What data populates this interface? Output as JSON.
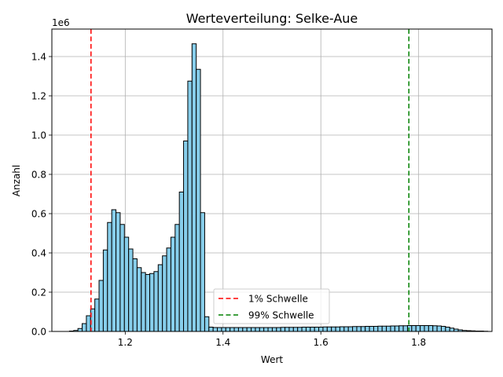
{
  "chart_data": {
    "type": "bar",
    "title": "Werteverteilung: Selke-Aue",
    "xlabel": "Wert",
    "ylabel": "Anzahl",
    "y_multiplier_label": "1e6",
    "xlim": [
      1.05,
      1.95
    ],
    "ylim": [
      0,
      1.54
    ],
    "x_ticks": [
      1.2,
      1.4,
      1.6,
      1.8
    ],
    "x_tick_labels": [
      "1.2",
      "1.4",
      "1.6",
      "1.8"
    ],
    "y_ticks": [
      0,
      0.2,
      0.4,
      0.6,
      0.8,
      1.0,
      1.2,
      1.4
    ],
    "y_tick_labels": [
      "0.0",
      "0.2",
      "0.4",
      "0.6",
      "0.8",
      "1.0",
      "1.2",
      "1.4"
    ],
    "grid": true,
    "legend_position": "lower-center",
    "bar_color": "#87ceeb",
    "bar_edge_color": "#000000",
    "bins": {
      "start": 1.086,
      "width": 0.00864,
      "values": [
        0.002,
        0.005,
        0.015,
        0.04,
        0.08,
        0.115,
        0.165,
        0.26,
        0.415,
        0.555,
        0.62,
        0.605,
        0.545,
        0.48,
        0.42,
        0.37,
        0.325,
        0.3,
        0.29,
        0.295,
        0.305,
        0.34,
        0.385,
        0.425,
        0.48,
        0.545,
        0.71,
        0.97,
        1.275,
        1.465,
        1.335,
        0.605,
        0.075,
        0.022,
        0.02,
        0.02,
        0.02,
        0.02,
        0.02,
        0.02,
        0.02,
        0.02,
        0.02,
        0.02,
        0.02,
        0.02,
        0.02,
        0.02,
        0.02,
        0.02,
        0.021,
        0.021,
        0.021,
        0.021,
        0.021,
        0.022,
        0.022,
        0.022,
        0.022,
        0.022,
        0.023,
        0.023,
        0.023,
        0.023,
        0.024,
        0.024,
        0.024,
        0.025,
        0.025,
        0.025,
        0.026,
        0.026,
        0.026,
        0.027,
        0.027,
        0.027,
        0.028,
        0.028,
        0.029,
        0.029,
        0.03,
        0.03,
        0.03,
        0.03,
        0.03,
        0.03,
        0.029,
        0.028,
        0.026,
        0.022,
        0.017,
        0.012,
        0.008,
        0.005,
        0.004,
        0.003,
        0.002,
        0.002,
        0.001
      ]
    },
    "thresholds": [
      {
        "name": "1% Schwelle",
        "x": 1.13,
        "color": "#ff0000"
      },
      {
        "name": "99% Schwelle",
        "x": 1.78,
        "color": "#008000"
      }
    ]
  }
}
